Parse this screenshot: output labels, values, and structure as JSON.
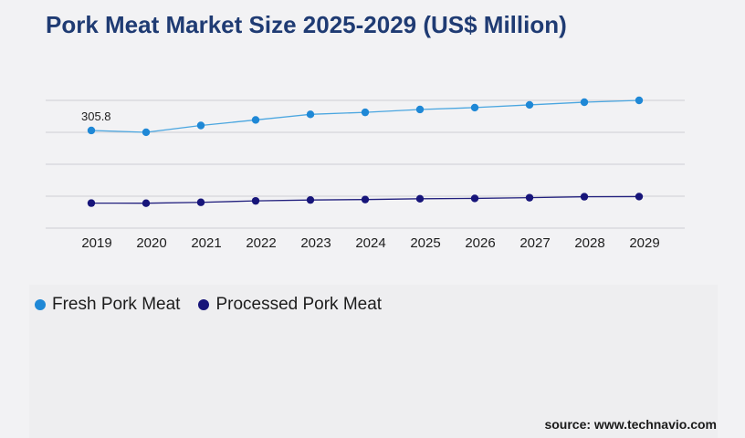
{
  "chart_data": {
    "type": "line",
    "title": "Pork Meat Market Size 2025-2029 (US$ Million)",
    "xlabel": "",
    "ylabel": "",
    "x": [
      "2019",
      "2020",
      "2021",
      "2022",
      "2023",
      "2024",
      "2025",
      "2026",
      "2027",
      "2028",
      "2029"
    ],
    "ylim": [
      0,
      400
    ],
    "grid": true,
    "legend_position": "bottom-left",
    "series": [
      {
        "name": "Fresh Pork Meat",
        "color": "#1f88d6",
        "line_color": "#4aa6e0",
        "values": [
          305.8,
          300.1,
          321.4,
          338.7,
          356.2,
          362.5,
          371.5,
          377.4,
          385.9,
          394.3,
          400.0
        ],
        "labels": [
          "305.8",
          "",
          "",
          "",
          "",
          "",
          "",
          "",
          "",
          "",
          ""
        ]
      },
      {
        "name": "Processed Pork Meat",
        "color": "#17157a",
        "line_color": "#22207e",
        "values": [
          78.3,
          78.0,
          80.8,
          85.3,
          88.1,
          89.5,
          91.9,
          93.1,
          95.3,
          98.3,
          98.8
        ],
        "labels": [
          "",
          "",
          "",
          "",
          "",
          "",
          "",
          "",
          "",
          "",
          ""
        ]
      }
    ]
  },
  "source": "source: www.technavio.com"
}
